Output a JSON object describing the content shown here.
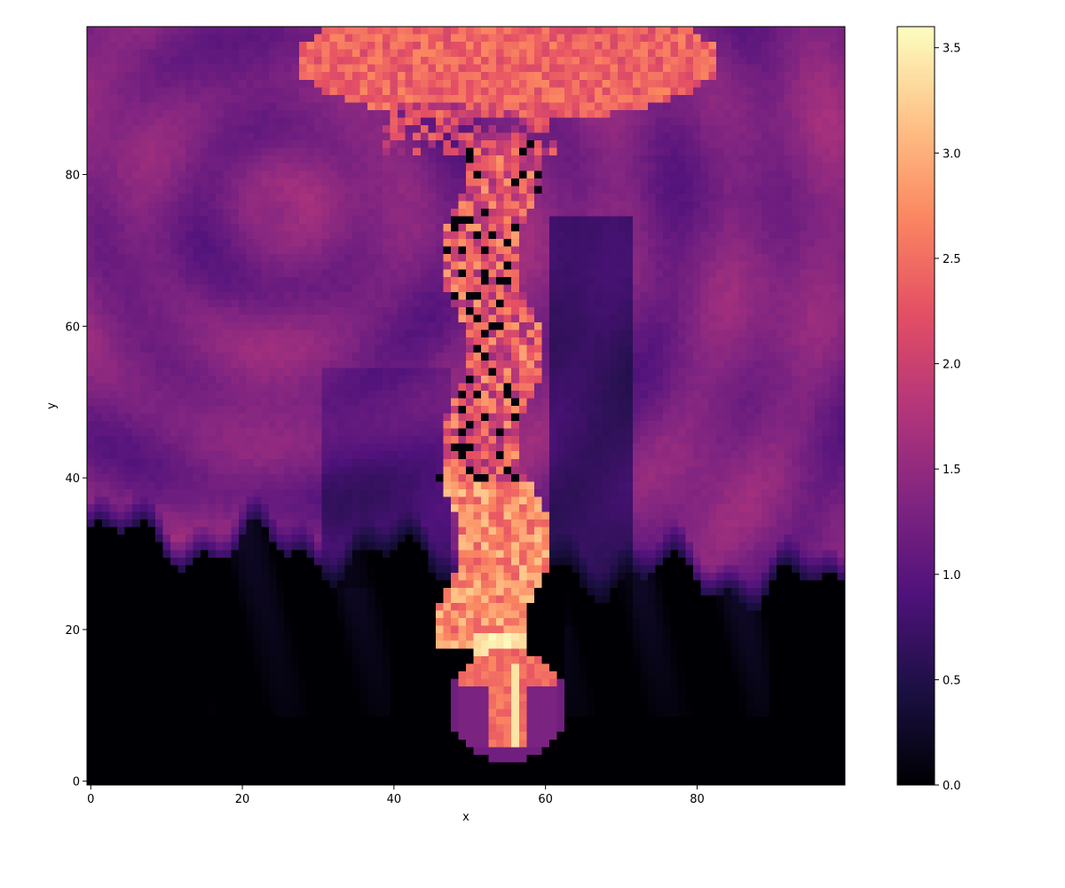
{
  "chart_data": {
    "type": "heatmap",
    "title": "",
    "xlabel": "x",
    "ylabel": "y",
    "xlim": [
      -0.5,
      99.5
    ],
    "ylim": [
      -0.5,
      99.5
    ],
    "grid": false,
    "colormap": "magma",
    "colormap_stops": [
      "#000004",
      "#1c1044",
      "#4f127b",
      "#812581",
      "#b5367a",
      "#e55064",
      "#fb8761",
      "#fec287",
      "#fcfdbf"
    ],
    "x_ticks": [
      0,
      20,
      40,
      60,
      80
    ],
    "y_ticks": [
      0,
      20,
      40,
      60,
      80
    ],
    "colorbar": {
      "range": [
        0.0,
        3.6
      ],
      "ticks": [
        0.0,
        0.5,
        1.0,
        1.5,
        2.0,
        2.5,
        3.0,
        3.5
      ],
      "tick_labels": [
        "0.0",
        "0.5",
        "1.0",
        "1.5",
        "2.0",
        "2.5",
        "3.0",
        "3.5"
      ]
    },
    "grid_size": [
      100,
      100
    ],
    "field_description": "Rising plume: dense bubble at bottom center (x≈50-62, y≈3-18, values ~1.0-2.8), turbulent stem up center (x≈45-62, y≈18-85, values ~0.0-3.6), mushroom cap at top (x≈40-80, y≈85-99, values ~2.0-2.8), surrounding fluid ~1.0-1.7, empty region ~0 below y≈32 on the left and y≈25 on the right.",
    "values_sample": [
      {
        "x": 55,
        "y": 10,
        "value": 2.4
      },
      {
        "x": 50,
        "y": 8,
        "value": 1.3
      },
      {
        "x": 56,
        "y": 17,
        "value": 3.4
      },
      {
        "x": 55,
        "y": 28,
        "value": 2.9
      },
      {
        "x": 55,
        "y": 40,
        "value": 2.6
      },
      {
        "x": 52,
        "y": 60,
        "value": 2.3
      },
      {
        "x": 45,
        "y": 95,
        "value": 2.5
      },
      {
        "x": 20,
        "y": 80,
        "value": 1.8
      },
      {
        "x": 10,
        "y": 60,
        "value": 1.4
      },
      {
        "x": 80,
        "y": 50,
        "value": 1.0
      },
      {
        "x": 10,
        "y": 10,
        "value": 0.0
      },
      {
        "x": 90,
        "y": 15,
        "value": 0.0
      }
    ]
  }
}
